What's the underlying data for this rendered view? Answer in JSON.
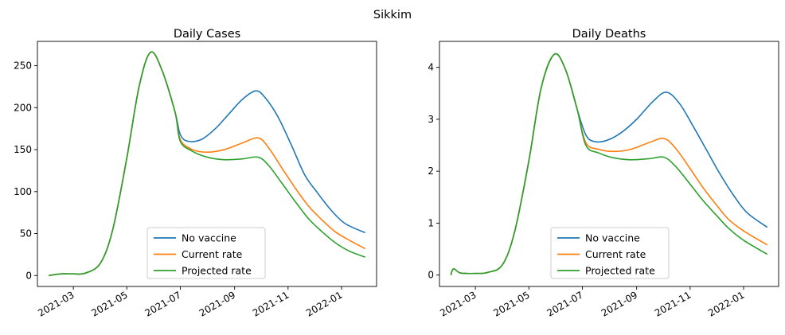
{
  "figure": {
    "suptitle": "Sikkim"
  },
  "chart_data": [
    {
      "type": "line",
      "title": "Daily Cases",
      "xlabel": "",
      "ylabel": "",
      "x_tick_labels": [
        "2021-03",
        "2021-05",
        "2021-07",
        "2021-09",
        "2021-11",
        "2022-01"
      ],
      "x_tick_dates": [
        "2021-03-01",
        "2021-05-01",
        "2021-07-01",
        "2021-09-01",
        "2021-11-01",
        "2022-01-01"
      ],
      "xlim": [
        "2021-01-19",
        "2022-02-10"
      ],
      "y_ticks": [
        0,
        50,
        100,
        150,
        200,
        250
      ],
      "ylim": [
        -13,
        279
      ],
      "grid": false,
      "legend_position": "lower-center",
      "series": [
        {
          "name": "No vaccine",
          "color": "#1f77b4",
          "points": [
            [
              "2021-02-01",
              0
            ],
            [
              "2021-02-15",
              2
            ],
            [
              "2021-03-01",
              2
            ],
            [
              "2021-03-15",
              3
            ],
            [
              "2021-04-01",
              15
            ],
            [
              "2021-04-15",
              55
            ],
            [
              "2021-05-01",
              140
            ],
            [
              "2021-05-15",
              225
            ],
            [
              "2021-05-28",
              266
            ],
            [
              "2021-06-10",
              245
            ],
            [
              "2021-06-25",
              195
            ],
            [
              "2021-07-01",
              168
            ],
            [
              "2021-07-10",
              160
            ],
            [
              "2021-07-25",
              162
            ],
            [
              "2021-08-10",
              175
            ],
            [
              "2021-08-25",
              192
            ],
            [
              "2021-09-10",
              210
            ],
            [
              "2021-09-25",
              220
            ],
            [
              "2021-10-05",
              213
            ],
            [
              "2021-10-20",
              190
            ],
            [
              "2021-11-05",
              155
            ],
            [
              "2021-11-20",
              120
            ],
            [
              "2021-12-05",
              98
            ],
            [
              "2021-12-20",
              78
            ],
            [
              "2022-01-05",
              62
            ],
            [
              "2022-01-28",
              51
            ]
          ]
        },
        {
          "name": "Current rate",
          "color": "#ff7f0e",
          "points": [
            [
              "2021-02-01",
              0
            ],
            [
              "2021-02-15",
              2
            ],
            [
              "2021-03-01",
              2
            ],
            [
              "2021-03-15",
              3
            ],
            [
              "2021-04-01",
              15
            ],
            [
              "2021-04-15",
              55
            ],
            [
              "2021-05-01",
              140
            ],
            [
              "2021-05-15",
              225
            ],
            [
              "2021-05-28",
              266
            ],
            [
              "2021-06-10",
              245
            ],
            [
              "2021-06-25",
              195
            ],
            [
              "2021-07-01",
              162
            ],
            [
              "2021-07-15",
              150
            ],
            [
              "2021-08-01",
              147
            ],
            [
              "2021-08-20",
              150
            ],
            [
              "2021-09-10",
              158
            ],
            [
              "2021-09-28",
              164
            ],
            [
              "2021-10-10",
              152
            ],
            [
              "2021-10-25",
              128
            ],
            [
              "2021-11-10",
              103
            ],
            [
              "2021-11-25",
              82
            ],
            [
              "2021-12-10",
              66
            ],
            [
              "2021-12-25",
              52
            ],
            [
              "2022-01-10",
              42
            ],
            [
              "2022-01-28",
              32
            ]
          ]
        },
        {
          "name": "Projected rate",
          "color": "#2ca02c",
          "points": [
            [
              "2021-02-01",
              0
            ],
            [
              "2021-02-15",
              2
            ],
            [
              "2021-03-01",
              2
            ],
            [
              "2021-03-15",
              3
            ],
            [
              "2021-04-01",
              15
            ],
            [
              "2021-04-15",
              55
            ],
            [
              "2021-05-01",
              140
            ],
            [
              "2021-05-15",
              225
            ],
            [
              "2021-05-28",
              266
            ],
            [
              "2021-06-10",
              245
            ],
            [
              "2021-06-25",
              195
            ],
            [
              "2021-07-01",
              160
            ],
            [
              "2021-07-15",
              148
            ],
            [
              "2021-08-01",
              141
            ],
            [
              "2021-08-20",
              138
            ],
            [
              "2021-09-10",
              139
            ],
            [
              "2021-09-28",
              141
            ],
            [
              "2021-10-10",
              131
            ],
            [
              "2021-10-25",
              110
            ],
            [
              "2021-11-10",
              87
            ],
            [
              "2021-11-25",
              67
            ],
            [
              "2021-12-10",
              52
            ],
            [
              "2021-12-25",
              39
            ],
            [
              "2022-01-10",
              29
            ],
            [
              "2022-01-28",
              22
            ]
          ]
        }
      ]
    },
    {
      "type": "line",
      "title": "Daily Deaths",
      "xlabel": "",
      "ylabel": "",
      "x_tick_labels": [
        "2021-03",
        "2021-05",
        "2021-07",
        "2021-09",
        "2021-11",
        "2022-01"
      ],
      "x_tick_dates": [
        "2021-03-01",
        "2021-05-01",
        "2021-07-01",
        "2021-09-01",
        "2021-11-01",
        "2022-01-01"
      ],
      "xlim": [
        "2021-01-19",
        "2022-02-10"
      ],
      "y_ticks": [
        0,
        1,
        2,
        3,
        4
      ],
      "ylim": [
        -0.22,
        4.5
      ],
      "grid": false,
      "legend_position": "lower-center",
      "series": [
        {
          "name": "No vaccine",
          "color": "#1f77b4",
          "points": [
            [
              "2021-02-01",
              0
            ],
            [
              "2021-02-04",
              0.12
            ],
            [
              "2021-02-12",
              0.04
            ],
            [
              "2021-03-01",
              0.03
            ],
            [
              "2021-03-15",
              0.05
            ],
            [
              "2021-04-01",
              0.2
            ],
            [
              "2021-04-15",
              0.85
            ],
            [
              "2021-05-01",
              2.2
            ],
            [
              "2021-05-15",
              3.6
            ],
            [
              "2021-05-30",
              4.25
            ],
            [
              "2021-06-12",
              3.95
            ],
            [
              "2021-06-25",
              3.2
            ],
            [
              "2021-07-05",
              2.7
            ],
            [
              "2021-07-15",
              2.57
            ],
            [
              "2021-07-30",
              2.6
            ],
            [
              "2021-08-15",
              2.75
            ],
            [
              "2021-09-01",
              3.0
            ],
            [
              "2021-09-20",
              3.35
            ],
            [
              "2021-10-05",
              3.52
            ],
            [
              "2021-10-20",
              3.3
            ],
            [
              "2021-11-05",
              2.85
            ],
            [
              "2021-11-20",
              2.4
            ],
            [
              "2021-12-05",
              1.95
            ],
            [
              "2021-12-20",
              1.55
            ],
            [
              "2022-01-05",
              1.2
            ],
            [
              "2022-01-28",
              0.92
            ]
          ]
        },
        {
          "name": "Current rate",
          "color": "#ff7f0e",
          "points": [
            [
              "2021-02-01",
              0
            ],
            [
              "2021-02-04",
              0.12
            ],
            [
              "2021-02-12",
              0.04
            ],
            [
              "2021-03-01",
              0.03
            ],
            [
              "2021-03-15",
              0.05
            ],
            [
              "2021-04-01",
              0.2
            ],
            [
              "2021-04-15",
              0.85
            ],
            [
              "2021-05-01",
              2.2
            ],
            [
              "2021-05-15",
              3.6
            ],
            [
              "2021-05-30",
              4.25
            ],
            [
              "2021-06-12",
              3.95
            ],
            [
              "2021-06-25",
              3.2
            ],
            [
              "2021-07-05",
              2.55
            ],
            [
              "2021-07-20",
              2.42
            ],
            [
              "2021-08-05",
              2.38
            ],
            [
              "2021-08-25",
              2.42
            ],
            [
              "2021-09-15",
              2.55
            ],
            [
              "2021-10-02",
              2.63
            ],
            [
              "2021-10-15",
              2.45
            ],
            [
              "2021-11-01",
              2.05
            ],
            [
              "2021-11-15",
              1.7
            ],
            [
              "2021-12-01",
              1.35
            ],
            [
              "2021-12-15",
              1.07
            ],
            [
              "2022-01-01",
              0.85
            ],
            [
              "2022-01-28",
              0.58
            ]
          ]
        },
        {
          "name": "Projected rate",
          "color": "#2ca02c",
          "points": [
            [
              "2021-02-01",
              0
            ],
            [
              "2021-02-04",
              0.12
            ],
            [
              "2021-02-12",
              0.04
            ],
            [
              "2021-03-01",
              0.03
            ],
            [
              "2021-03-15",
              0.05
            ],
            [
              "2021-04-01",
              0.2
            ],
            [
              "2021-04-15",
              0.85
            ],
            [
              "2021-05-01",
              2.2
            ],
            [
              "2021-05-15",
              3.6
            ],
            [
              "2021-05-30",
              4.25
            ],
            [
              "2021-06-12",
              3.95
            ],
            [
              "2021-06-25",
              3.2
            ],
            [
              "2021-07-05",
              2.5
            ],
            [
              "2021-07-20",
              2.35
            ],
            [
              "2021-08-05",
              2.26
            ],
            [
              "2021-08-25",
              2.22
            ],
            [
              "2021-09-15",
              2.24
            ],
            [
              "2021-10-02",
              2.27
            ],
            [
              "2021-10-15",
              2.1
            ],
            [
              "2021-11-01",
              1.75
            ],
            [
              "2021-11-15",
              1.45
            ],
            [
              "2021-12-01",
              1.15
            ],
            [
              "2021-12-15",
              0.9
            ],
            [
              "2022-01-01",
              0.67
            ],
            [
              "2022-01-28",
              0.4
            ]
          ]
        }
      ]
    }
  ]
}
